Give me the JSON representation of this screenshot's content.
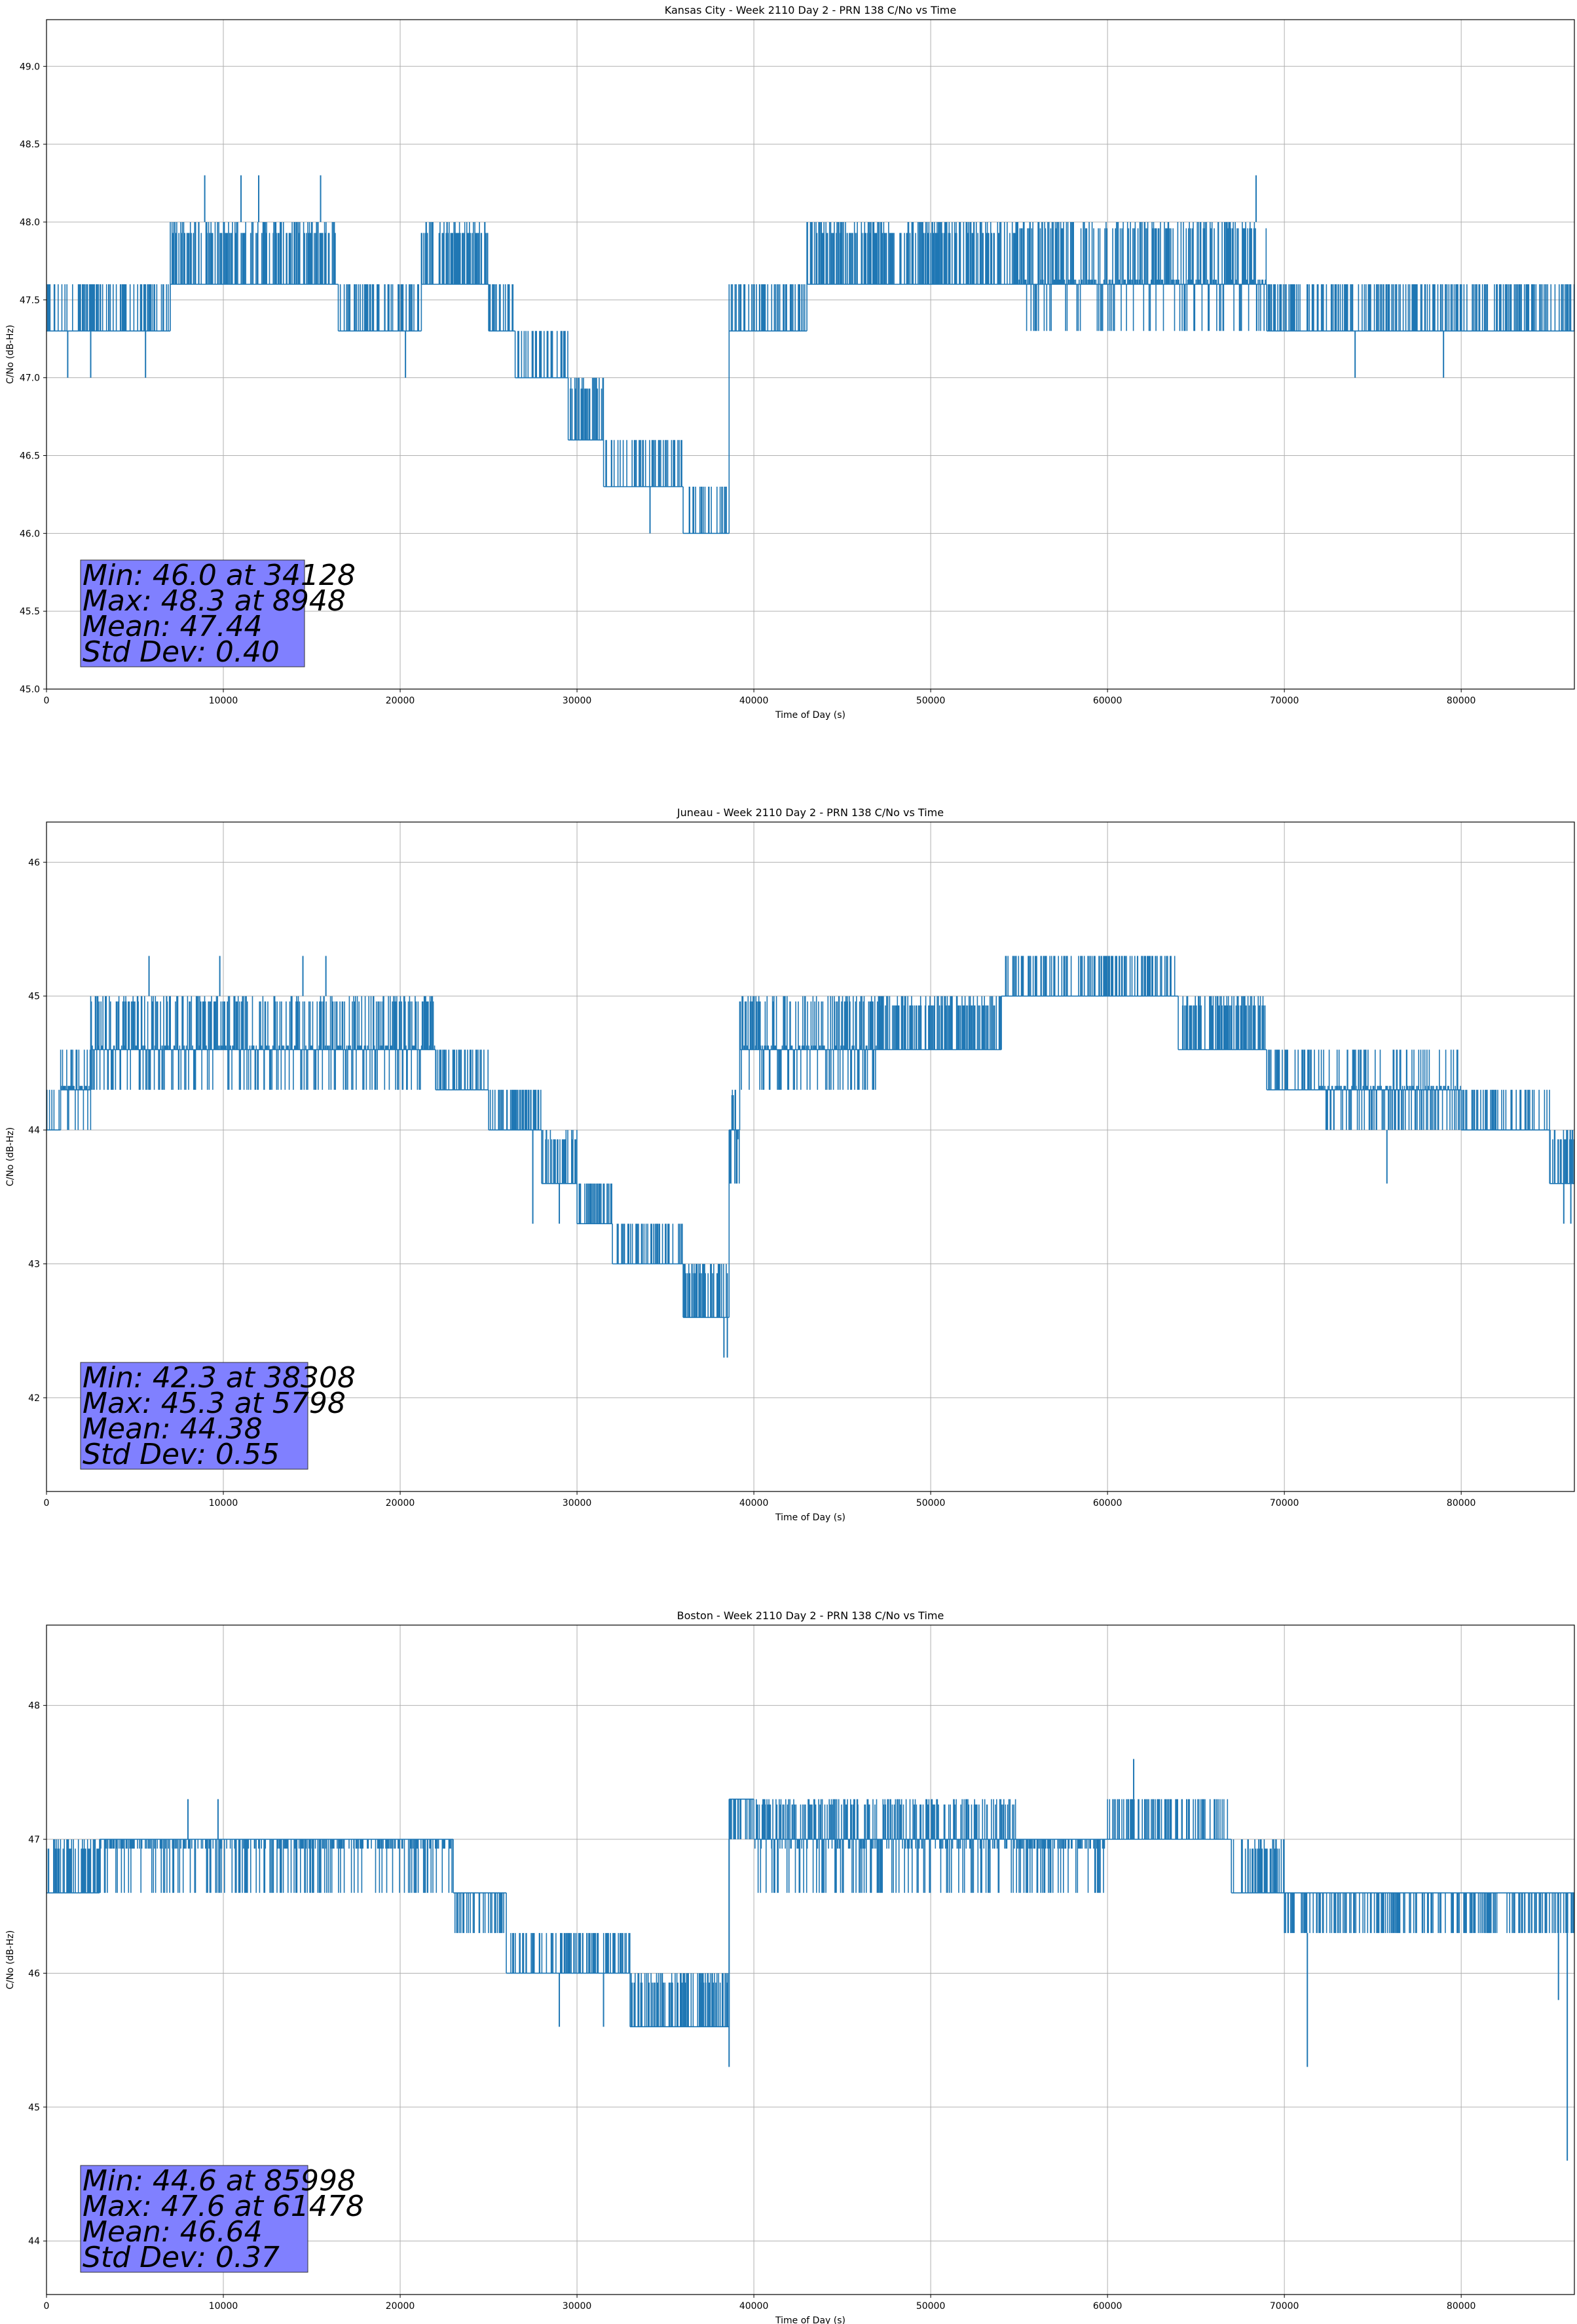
{
  "chart_data": [
    {
      "type": "line",
      "title": "Kansas City - Week 2110 Day 2 - PRN 138 C/No vs Time",
      "xlabel": "Time of Day (s)",
      "ylabel": "C/No (dB-Hz)",
      "xlim": [
        0,
        86400
      ],
      "ylim": [
        45.0,
        49.3
      ],
      "xticks": [
        0,
        10000,
        20000,
        30000,
        40000,
        50000,
        60000,
        70000,
        80000
      ],
      "yticks": [
        45.0,
        45.5,
        46.0,
        46.5,
        47.0,
        47.5,
        48.0,
        48.5,
        49.0
      ],
      "ytick_decimals": 1,
      "grid": true,
      "color": "#1f77b4",
      "resolution": 0.33,
      "segments": [
        {
          "x0": 0,
          "x1": 7000,
          "lo": 47.3,
          "hi": 47.6,
          "mode": 47.3
        },
        {
          "x0": 7000,
          "x1": 16500,
          "lo": 47.6,
          "hi": 48.0,
          "mode": 47.6
        },
        {
          "x0": 16500,
          "x1": 21200,
          "lo": 47.3,
          "hi": 47.6,
          "mode": 47.3
        },
        {
          "x0": 21200,
          "x1": 25000,
          "lo": 47.6,
          "hi": 48.0,
          "mode": 47.6
        },
        {
          "x0": 25000,
          "x1": 26500,
          "lo": 47.3,
          "hi": 47.6,
          "mode": 47.3
        },
        {
          "x0": 26500,
          "x1": 29500,
          "lo": 47.0,
          "hi": 47.3,
          "mode": 47.0
        },
        {
          "x0": 29500,
          "x1": 31500,
          "lo": 46.6,
          "hi": 47.0,
          "mode": 46.6
        },
        {
          "x0": 31500,
          "x1": 36000,
          "lo": 46.3,
          "hi": 46.6,
          "mode": 46.3
        },
        {
          "x0": 36000,
          "x1": 38600,
          "lo": 46.0,
          "hi": 46.3,
          "mode": 46.0
        },
        {
          "x0": 38600,
          "x1": 43000,
          "lo": 47.3,
          "hi": 47.6,
          "mode": 47.3
        },
        {
          "x0": 43000,
          "x1": 55000,
          "lo": 47.6,
          "hi": 48.0,
          "mode": 47.6
        },
        {
          "x0": 55000,
          "x1": 69000,
          "lo": 47.3,
          "hi": 48.0,
          "mode": 47.6
        },
        {
          "x0": 69000,
          "x1": 86400,
          "lo": 47.3,
          "hi": 47.6,
          "mode": 47.3
        }
      ],
      "spikes": [
        [
          8948,
          48.3
        ],
        [
          11000,
          48.3
        ],
        [
          12000,
          48.3
        ],
        [
          15500,
          48.3
        ],
        [
          68400,
          48.3
        ],
        [
          1200,
          47.0
        ],
        [
          2500,
          47.0
        ],
        [
          5600,
          47.0
        ],
        [
          20300,
          47.0
        ],
        [
          74000,
          47.0
        ],
        [
          79000,
          47.0
        ],
        [
          36200,
          46.0
        ],
        [
          34128,
          46.0
        ]
      ],
      "stats": {
        "min": "Min: 46.0 at 34128",
        "max": "Max: 48.3 at 8948",
        "mean": "Mean: 47.44",
        "std": "Std Dev: 0.40",
        "box_color": "#8080ff"
      }
    },
    {
      "type": "line",
      "title": "Juneau - Week 2110 Day 2 - PRN 138 C/No vs Time",
      "xlabel": "Time of Day (s)",
      "ylabel": "C/No (dB-Hz)",
      "xlim": [
        0,
        86400
      ],
      "ylim": [
        41.3,
        46.3
      ],
      "xticks": [
        0,
        10000,
        20000,
        30000,
        40000,
        50000,
        60000,
        70000,
        80000
      ],
      "yticks": [
        42,
        43,
        44,
        45,
        46
      ],
      "ytick_decimals": 0,
      "grid": true,
      "color": "#1f77b4",
      "resolution": 0.33,
      "segments": [
        {
          "x0": 0,
          "x1": 800,
          "lo": 44.0,
          "hi": 44.3,
          "mode": 44.0
        },
        {
          "x0": 800,
          "x1": 2500,
          "lo": 44.0,
          "hi": 44.6,
          "mode": 44.3
        },
        {
          "x0": 2500,
          "x1": 22000,
          "lo": 44.3,
          "hi": 45.0,
          "mode": 44.6
        },
        {
          "x0": 22000,
          "x1": 25000,
          "lo": 44.3,
          "hi": 44.6,
          "mode": 44.3
        },
        {
          "x0": 25000,
          "x1": 28000,
          "lo": 44.0,
          "hi": 44.3,
          "mode": 44.0
        },
        {
          "x0": 28000,
          "x1": 30000,
          "lo": 43.6,
          "hi": 44.0,
          "mode": 43.6
        },
        {
          "x0": 30000,
          "x1": 32000,
          "lo": 43.3,
          "hi": 43.6,
          "mode": 43.3
        },
        {
          "x0": 32000,
          "x1": 36000,
          "lo": 43.0,
          "hi": 43.3,
          "mode": 43.0
        },
        {
          "x0": 36000,
          "x1": 38600,
          "lo": 42.6,
          "hi": 43.0,
          "mode": 42.6
        },
        {
          "x0": 38600,
          "x1": 39200,
          "lo": 43.6,
          "hi": 44.3,
          "mode": 44.0
        },
        {
          "x0": 39200,
          "x1": 47000,
          "lo": 44.3,
          "hi": 45.0,
          "mode": 44.6
        },
        {
          "x0": 47000,
          "x1": 54000,
          "lo": 44.6,
          "hi": 45.0,
          "mode": 44.6
        },
        {
          "x0": 54000,
          "x1": 64000,
          "lo": 45.0,
          "hi": 45.3,
          "mode": 45.0
        },
        {
          "x0": 64000,
          "x1": 69000,
          "lo": 44.6,
          "hi": 45.0,
          "mode": 44.6
        },
        {
          "x0": 69000,
          "x1": 72000,
          "lo": 44.3,
          "hi": 44.6,
          "mode": 44.3
        },
        {
          "x0": 72000,
          "x1": 80000,
          "lo": 44.0,
          "hi": 44.6,
          "mode": 44.3
        },
        {
          "x0": 80000,
          "x1": 85000,
          "lo": 44.0,
          "hi": 44.3,
          "mode": 44.0
        },
        {
          "x0": 85000,
          "x1": 86400,
          "lo": 43.6,
          "hi": 44.0,
          "mode": 43.6
        }
      ],
      "spikes": [
        [
          5798,
          45.3
        ],
        [
          9800,
          45.3
        ],
        [
          14500,
          45.3
        ],
        [
          15800,
          45.3
        ],
        [
          38308,
          42.3
        ],
        [
          38500,
          42.3
        ],
        [
          75800,
          43.6
        ],
        [
          85800,
          43.3
        ],
        [
          86200,
          43.3
        ],
        [
          27500,
          43.3
        ],
        [
          29000,
          43.3
        ]
      ],
      "stats": {
        "min": "Min: 42.3 at 38308",
        "max": "Max: 45.3 at 5798",
        "mean": "Mean: 44.38",
        "std": "Std Dev: 0.55",
        "box_color": "#8080ff"
      }
    },
    {
      "type": "line",
      "title": "Boston - Week 2110 Day 2 - PRN 138 C/No vs Time",
      "xlabel": "Time of Day (s)",
      "ylabel": "C/No (dB-Hz)",
      "xlim": [
        0,
        86400
      ],
      "ylim": [
        43.6,
        48.6
      ],
      "xticks": [
        0,
        10000,
        20000,
        30000,
        40000,
        50000,
        60000,
        70000,
        80000
      ],
      "yticks": [
        44,
        45,
        46,
        47,
        48
      ],
      "ytick_decimals": 0,
      "grid": true,
      "color": "#1f77b4",
      "resolution": 0.33,
      "segments": [
        {
          "x0": 0,
          "x1": 3000,
          "lo": 46.6,
          "hi": 47.0,
          "mode": 46.6
        },
        {
          "x0": 3000,
          "x1": 23000,
          "lo": 46.6,
          "hi": 47.0,
          "mode": 47.0
        },
        {
          "x0": 23000,
          "x1": 26000,
          "lo": 46.3,
          "hi": 46.6,
          "mode": 46.6
        },
        {
          "x0": 26000,
          "x1": 33000,
          "lo": 46.0,
          "hi": 46.3,
          "mode": 46.0
        },
        {
          "x0": 33000,
          "x1": 38600,
          "lo": 45.6,
          "hi": 46.0,
          "mode": 45.6
        },
        {
          "x0": 38600,
          "x1": 40000,
          "lo": 47.0,
          "hi": 47.3,
          "mode": 47.3
        },
        {
          "x0": 40000,
          "x1": 55000,
          "lo": 46.6,
          "hi": 47.3,
          "mode": 47.0
        },
        {
          "x0": 55000,
          "x1": 60000,
          "lo": 46.6,
          "hi": 47.0,
          "mode": 47.0
        },
        {
          "x0": 60000,
          "x1": 67000,
          "lo": 47.0,
          "hi": 47.3,
          "mode": 47.0
        },
        {
          "x0": 67000,
          "x1": 70000,
          "lo": 46.6,
          "hi": 47.0,
          "mode": 46.6
        },
        {
          "x0": 70000,
          "x1": 86400,
          "lo": 46.3,
          "hi": 46.6,
          "mode": 46.6
        }
      ],
      "spikes": [
        [
          8000,
          47.3
        ],
        [
          9700,
          47.3
        ],
        [
          61478,
          47.6
        ],
        [
          38600,
          45.3
        ],
        [
          71300,
          45.3
        ],
        [
          85998,
          44.6
        ],
        [
          85500,
          45.8
        ],
        [
          29000,
          45.6
        ],
        [
          31500,
          45.6
        ]
      ],
      "stats": {
        "min": "Min: 44.6 at 85998",
        "max": "Max: 47.6 at 61478",
        "mean": "Mean: 46.64",
        "std": "Std Dev: 0.37",
        "box_color": "#8080ff"
      }
    }
  ]
}
